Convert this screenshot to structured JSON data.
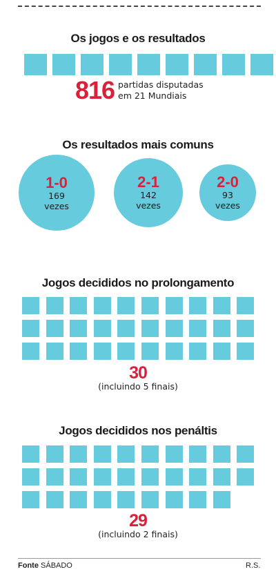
{
  "chart_data": [
    {
      "type": "pictogram",
      "title": "Os jogos e os resultados",
      "value": 816,
      "value_label": "816",
      "caption_line1": "partidas disputadas",
      "caption_line2": "em 21 Mundiais",
      "icon_count": 9
    },
    {
      "type": "bubble",
      "title": "Os resultados mais comuns",
      "categories": [
        "1-0",
        "2-1",
        "2-0"
      ],
      "values": [
        169,
        142,
        93
      ],
      "value_labels": [
        "169",
        "142",
        "93"
      ],
      "unit": "vezes"
    },
    {
      "type": "pictogram",
      "title": "Jogos decididos no prolongamento",
      "value": 30,
      "value_label": "30",
      "caption": "(incluindo 5 finais)",
      "icon_count": 30
    },
    {
      "type": "pictogram",
      "title": "Jogos decididos nos penáltis",
      "value": 29,
      "value_label": "29",
      "caption": "(incluindo 2 finais)",
      "icon_count": 29
    }
  ],
  "colors": {
    "icon": "#65cbdd",
    "accent": "#d8213b"
  },
  "footer": {
    "source_label": "Fonte",
    "source_name": "SÁBADO",
    "author": "R.S."
  }
}
